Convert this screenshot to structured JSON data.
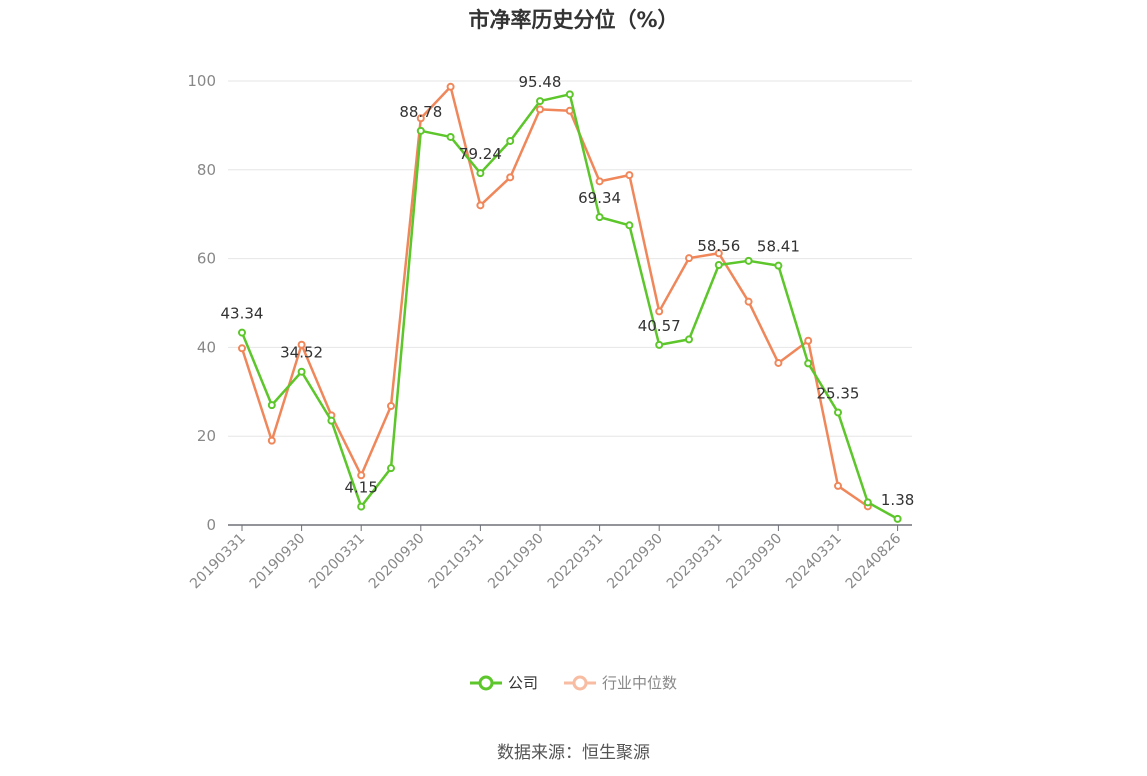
{
  "chart_data": {
    "type": "line",
    "title": "市净率历史分位（%）",
    "ylim": [
      0,
      100
    ],
    "yticks": [
      0,
      20,
      40,
      60,
      80,
      100
    ],
    "x_tick_labels": [
      "20190331",
      "20190930",
      "20200331",
      "20200930",
      "20210331",
      "20210930",
      "20220331",
      "20220930",
      "20230331",
      "20230930",
      "20240331",
      "20240826"
    ],
    "x": [
      "20190331",
      "20190630",
      "20190930",
      "20191231",
      "20200331",
      "20200630",
      "20200930",
      "20201231",
      "20210331",
      "20210630",
      "20210930",
      "20211231",
      "20220331",
      "20220630",
      "20220930",
      "20221231",
      "20230331",
      "20230630",
      "20230930",
      "20231231",
      "20240331",
      "20240630",
      "20240826"
    ],
    "series": [
      {
        "name": "公司",
        "color": "#5cc62a",
        "values": [
          43.34,
          27,
          34.52,
          23.5,
          4.15,
          12.8,
          88.78,
          87.4,
          79.24,
          86.5,
          95.48,
          97,
          69.34,
          67.5,
          40.57,
          41.8,
          58.56,
          59.5,
          58.41,
          36.4,
          25.35,
          5.1,
          1.38
        ],
        "labels": {
          "0": "43.34",
          "2": "34.52",
          "4": "4.15",
          "6": "88.78",
          "8": "79.24",
          "10": "95.48",
          "12": "69.34",
          "14": "40.57",
          "16": "58.56",
          "18": "58.41",
          "20": "25.35",
          "22": "1.38"
        }
      },
      {
        "name": "行业中位数",
        "color": "#f0875a",
        "values": [
          39.8,
          19,
          40.6,
          24.7,
          11.2,
          26.8,
          91.6,
          98.7,
          72,
          78.3,
          93.6,
          93.3,
          77.4,
          78.8,
          48.1,
          60.1,
          61.2,
          50.3,
          36.5,
          41.5,
          8.8,
          4.2,
          null
        ]
      }
    ],
    "legend": [
      {
        "name": "公司",
        "color": "#5cc62a",
        "active": true
      },
      {
        "name": "行业中位数",
        "color": "#f7bca2",
        "active": false
      }
    ],
    "legend_placement": "bottom-center",
    "grid": true
  },
  "source": "数据来源：恒生聚源"
}
